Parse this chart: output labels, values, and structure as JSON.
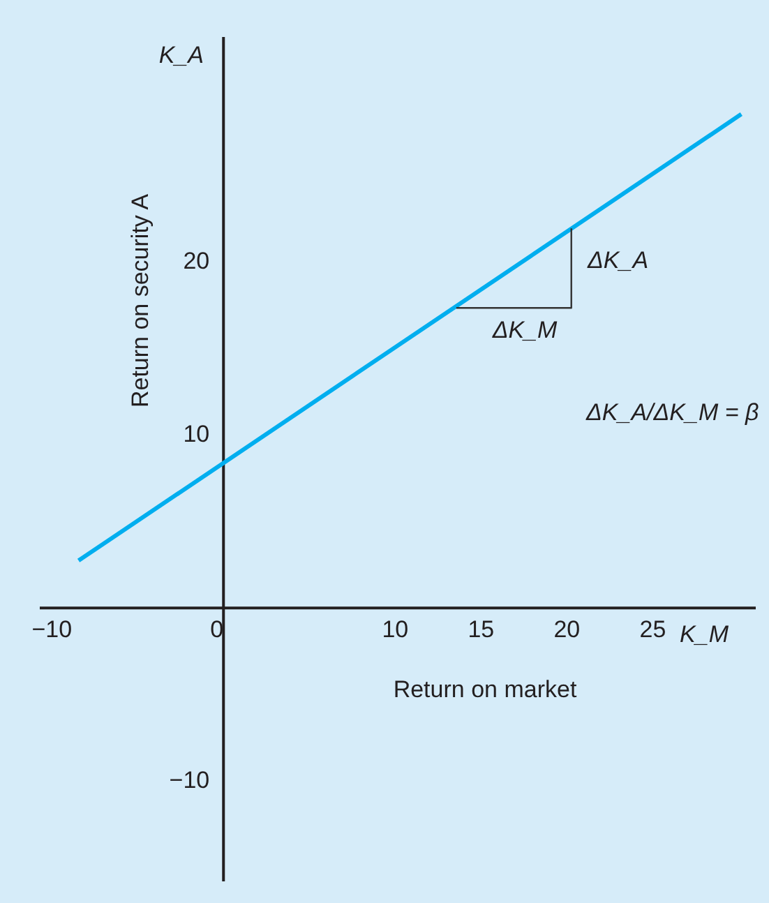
{
  "chart_data": {
    "type": "line",
    "xlabel": "Return on market",
    "ylabel": "Return on security A",
    "xlim": [
      -10.7,
      31
    ],
    "ylim": [
      -15.8,
      33
    ],
    "xticks": [
      -10,
      0,
      10,
      15,
      20,
      25
    ],
    "yticks": [
      20,
      10,
      -10
    ],
    "grid": false,
    "marker": "none",
    "line_style": "solid",
    "series": [
      {
        "color": "#00aeef",
        "x": [
          -8.4,
          30.2
        ],
        "values": [
          2.7,
          28.5
        ]
      },
      {
        "color": "#333333",
        "x": [
          13.6,
          20.3,
          20.3
        ],
        "values": [
          17.3,
          17.3,
          21.9
        ]
      }
    ],
    "annotations": [
      "K_A",
      "K_M",
      "ΔK_A",
      "ΔK_M",
      "ΔK_A/ΔK_M = β"
    ]
  }
}
